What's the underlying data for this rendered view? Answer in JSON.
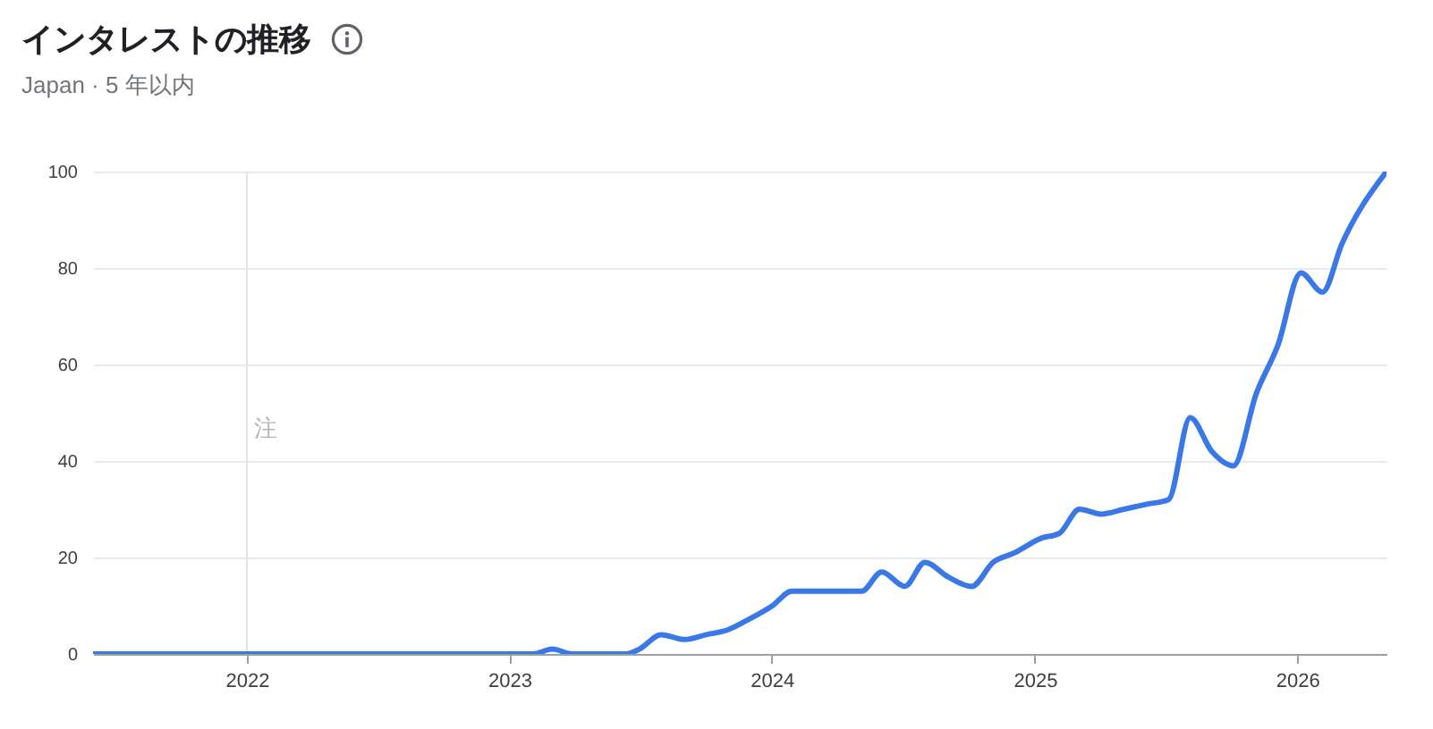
{
  "chart_data": {
    "type": "line",
    "title": "インタレストの推移",
    "subtitle": "Japan · 5 年以内",
    "x": [
      "2021-06-01",
      "2021-09-01",
      "2021-12-01",
      "2022-03-01",
      "2022-06-01",
      "2022-09-01",
      "2022-12-01",
      "2023-02-03",
      "2023-03-02",
      "2023-03-29",
      "2023-06-12",
      "2023-07-01",
      "2023-07-31",
      "2023-09-02",
      "2023-10-02",
      "2023-11-01",
      "2023-11-28",
      "2024-01-02",
      "2024-01-29",
      "2024-05-05",
      "2024-06-02",
      "2024-07-04",
      "2024-08-01",
      "2024-09-02",
      "2024-10-05",
      "2024-11-04",
      "2024-12-04",
      "2025-01-10",
      "2025-02-04",
      "2025-03-04",
      "2025-04-03",
      "2025-05-05",
      "2025-06-04",
      "2025-07-06",
      "2025-08-05",
      "2025-09-04",
      "2025-10-04",
      "2025-11-05",
      "2025-12-05",
      "2026-01-06",
      "2026-02-05",
      "2026-03-04",
      "2026-05-05"
    ],
    "values": [
      0,
      0,
      0,
      0,
      0,
      0,
      0,
      0,
      1,
      0,
      0,
      1,
      4,
      3,
      4,
      5,
      7,
      10,
      13,
      13,
      17,
      14,
      19,
      16,
      14,
      19,
      21,
      24,
      25,
      30,
      29,
      30,
      31,
      32,
      49,
      42,
      39,
      54,
      64,
      79,
      75,
      85,
      100
    ],
    "color": "#3b78e7",
    "line_style": "solid",
    "xlim": [
      "2021-06-01",
      "2026-05-05"
    ],
    "xticks": [
      "2022",
      "2023",
      "2024",
      "2025",
      "2026"
    ],
    "ylim": [
      0,
      100
    ],
    "yticks": [
      0,
      20,
      40,
      60,
      80,
      100
    ],
    "grid": "y",
    "ref_lines": [
      {
        "axis": "x",
        "value": "2022-01-01",
        "label": "注",
        "color": "#e3e3e3"
      }
    ]
  }
}
